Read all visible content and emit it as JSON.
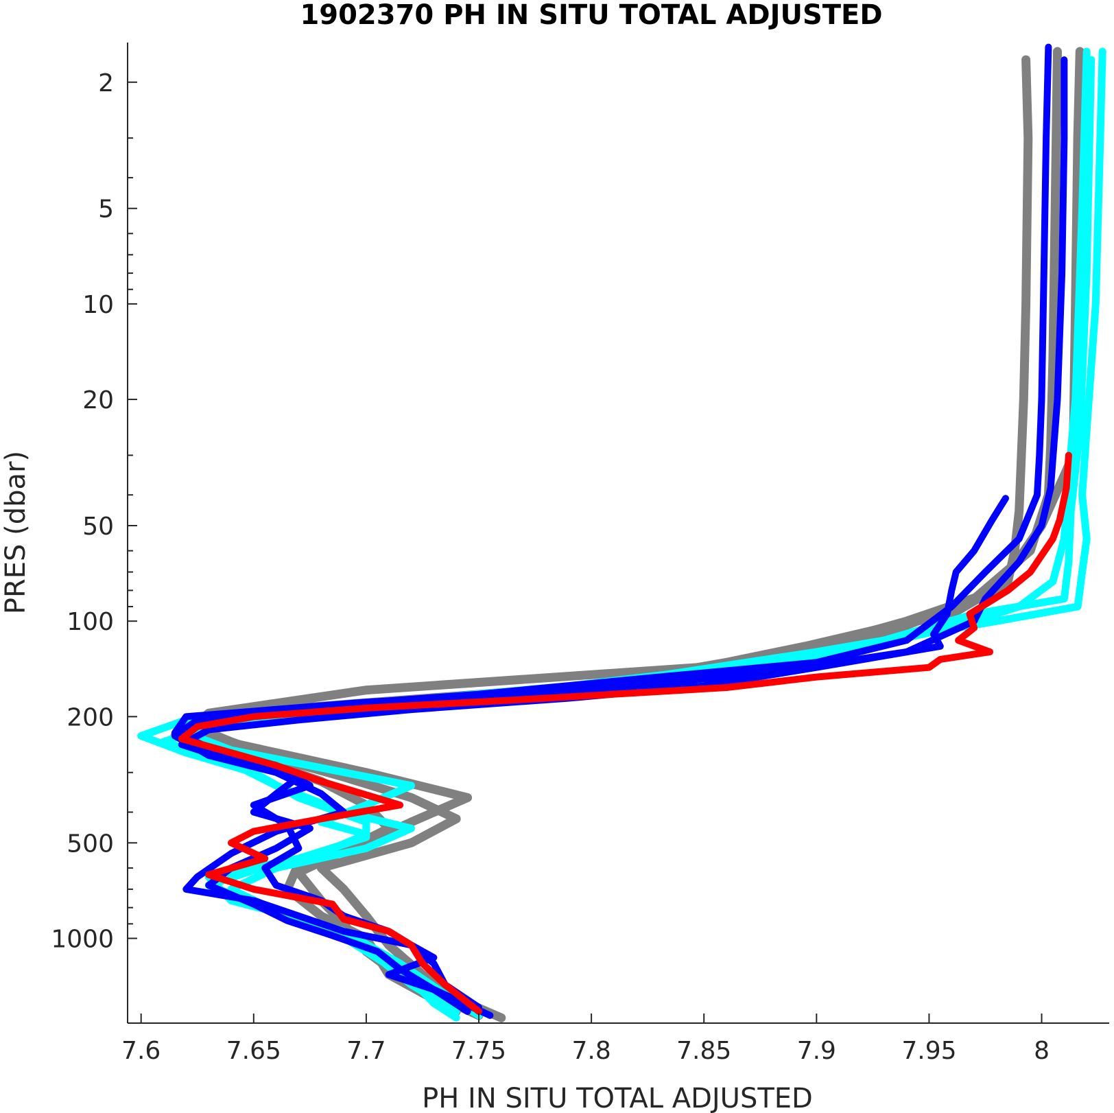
{
  "chart_data": {
    "type": "line",
    "title": "1902370  PH IN SITU TOTAL ADJUSTED",
    "xlabel": "PH IN SITU TOTAL ADJUSTED",
    "ylabel": "PRES (dbar)",
    "xlim": [
      7.594,
      8.03
    ],
    "ylim": [
      1.5,
      1850
    ],
    "y_scale": "log",
    "y_reversed": true,
    "grid": false,
    "x_ticks": [
      7.6,
      7.65,
      7.7,
      7.75,
      7.8,
      7.85,
      7.9,
      7.95,
      8.0
    ],
    "x_tick_labels": [
      "7.6",
      "7.65",
      "7.7",
      "7.75",
      "7.8",
      "7.85",
      "7.9",
      "7.95",
      "8"
    ],
    "y_ticks": [
      2,
      5,
      10,
      20,
      50,
      100,
      200,
      500,
      1000
    ],
    "y_tick_labels": [
      "2",
      "5",
      "10",
      "20",
      "50",
      "100",
      "200",
      "500",
      "1000"
    ],
    "y_minor_ticks": [
      3,
      4,
      6,
      7,
      8,
      9,
      30,
      40,
      60,
      70,
      80,
      90,
      300,
      400,
      600,
      700,
      800,
      900
    ],
    "colors": {
      "gray": "#808080",
      "cyan": "#00ffff",
      "blue": "#0000ff",
      "red": "#ff0000"
    },
    "series": [
      {
        "color": "gray",
        "points": [
          [
            7.993,
            1.7
          ],
          [
            7.994,
            3
          ],
          [
            7.993,
            10
          ],
          [
            7.992,
            20
          ],
          [
            7.991,
            30
          ],
          [
            7.99,
            45
          ],
          [
            7.988,
            60
          ],
          [
            7.985,
            75
          ],
          [
            7.96,
            95
          ],
          [
            7.93,
            105
          ],
          [
            7.895,
            120
          ],
          [
            7.86,
            135
          ],
          [
            7.8,
            160
          ],
          [
            7.66,
            190
          ],
          [
            7.62,
            210
          ],
          [
            7.64,
            240
          ],
          [
            7.66,
            270
          ],
          [
            7.69,
            310
          ],
          [
            7.72,
            360
          ],
          [
            7.74,
            420
          ],
          [
            7.72,
            500
          ],
          [
            7.68,
            600
          ],
          [
            7.69,
            700
          ],
          [
            7.7,
            850
          ],
          [
            7.71,
            1050
          ],
          [
            7.725,
            1300
          ],
          [
            7.745,
            1600
          ],
          [
            7.76,
            1780
          ]
        ]
      },
      {
        "color": "gray",
        "points": [
          [
            8.017,
            1.6
          ],
          [
            8.016,
            3
          ],
          [
            8.015,
            10
          ],
          [
            8.014,
            30
          ],
          [
            8.0,
            50
          ],
          [
            7.98,
            80
          ],
          [
            7.94,
            100
          ],
          [
            7.9,
            120
          ],
          [
            7.85,
            150
          ],
          [
            7.75,
            180
          ],
          [
            7.63,
            205
          ],
          [
            7.615,
            230
          ],
          [
            7.65,
            270
          ],
          [
            7.68,
            320
          ],
          [
            7.7,
            380
          ],
          [
            7.71,
            450
          ],
          [
            7.69,
            530
          ],
          [
            7.67,
            620
          ],
          [
            7.68,
            760
          ],
          [
            7.69,
            900
          ],
          [
            7.7,
            1100
          ],
          [
            7.72,
            1400
          ],
          [
            7.75,
            1750
          ]
        ]
      },
      {
        "color": "gray",
        "points": [
          [
            8.007,
            1.6
          ],
          [
            8.006,
            5
          ],
          [
            8.005,
            15
          ],
          [
            8.004,
            28
          ],
          [
            8.003,
            40
          ],
          [
            7.995,
            60
          ],
          [
            7.97,
            85
          ],
          [
            7.93,
            110
          ],
          [
            7.88,
            135
          ],
          [
            7.7,
            165
          ],
          [
            7.63,
            195
          ],
          [
            7.62,
            225
          ],
          [
            7.66,
            260
          ],
          [
            7.7,
            300
          ],
          [
            7.745,
            360
          ],
          [
            7.72,
            430
          ],
          [
            7.7,
            500
          ],
          [
            7.67,
            580
          ],
          [
            7.665,
            700
          ],
          [
            7.68,
            850
          ],
          [
            7.7,
            1000
          ],
          [
            7.71,
            1300
          ],
          [
            7.74,
            1700
          ]
        ]
      },
      {
        "color": "cyan",
        "points": [
          [
            8.027,
            1.6
          ],
          [
            8.026,
            3
          ],
          [
            8.024,
            10
          ],
          [
            8.02,
            25
          ],
          [
            8.018,
            40
          ],
          [
            8.02,
            55
          ],
          [
            8.018,
            70
          ],
          [
            8.016,
            90
          ],
          [
            7.98,
            100
          ],
          [
            7.9,
            125
          ],
          [
            7.8,
            160
          ],
          [
            7.7,
            185
          ],
          [
            7.62,
            205
          ],
          [
            7.6,
            230
          ],
          [
            7.62,
            260
          ],
          [
            7.65,
            300
          ],
          [
            7.67,
            360
          ],
          [
            7.7,
            430
          ],
          [
            7.7,
            480
          ],
          [
            7.67,
            560
          ],
          [
            7.63,
            640
          ],
          [
            7.64,
            760
          ],
          [
            7.68,
            900
          ],
          [
            7.7,
            1100
          ],
          [
            7.72,
            1350
          ],
          [
            7.73,
            1600
          ],
          [
            7.74,
            1780
          ]
        ]
      },
      {
        "color": "cyan",
        "points": [
          [
            8.02,
            1.6
          ],
          [
            8.018,
            5
          ],
          [
            8.015,
            20
          ],
          [
            8.012,
            35
          ],
          [
            8.01,
            55
          ],
          [
            8.005,
            75
          ],
          [
            7.99,
            90
          ],
          [
            7.96,
            105
          ],
          [
            7.9,
            130
          ],
          [
            7.84,
            155
          ],
          [
            7.74,
            175
          ],
          [
            7.69,
            185
          ],
          [
            7.63,
            215
          ],
          [
            7.61,
            240
          ],
          [
            7.64,
            280
          ],
          [
            7.66,
            330
          ],
          [
            7.69,
            400
          ],
          [
            7.72,
            450
          ],
          [
            7.7,
            520
          ],
          [
            7.66,
            600
          ],
          [
            7.64,
            700
          ],
          [
            7.66,
            820
          ],
          [
            7.69,
            950
          ],
          [
            7.715,
            1200
          ],
          [
            7.735,
            1500
          ],
          [
            7.75,
            1750
          ]
        ]
      },
      {
        "color": "cyan",
        "points": [
          [
            8.022,
            1.7
          ],
          [
            8.02,
            8
          ],
          [
            8.017,
            25
          ],
          [
            8.013,
            45
          ],
          [
            8.012,
            65
          ],
          [
            8.01,
            85
          ],
          [
            7.97,
            95
          ],
          [
            7.93,
            115
          ],
          [
            7.86,
            140
          ],
          [
            7.79,
            160
          ],
          [
            7.71,
            180
          ],
          [
            7.65,
            200
          ],
          [
            7.62,
            225
          ],
          [
            7.64,
            255
          ],
          [
            7.68,
            290
          ],
          [
            7.72,
            330
          ],
          [
            7.7,
            380
          ],
          [
            7.68,
            430
          ],
          [
            7.7,
            470
          ],
          [
            7.68,
            540
          ],
          [
            7.65,
            610
          ],
          [
            7.63,
            680
          ],
          [
            7.655,
            800
          ],
          [
            7.69,
            950
          ],
          [
            7.705,
            1150
          ],
          [
            7.72,
            1400
          ],
          [
            7.74,
            1700
          ]
        ]
      },
      {
        "color": "blue",
        "points": [
          [
            8.003,
            1.55
          ],
          [
            8.002,
            3
          ],
          [
            8.001,
            8
          ],
          [
            8.0,
            20
          ],
          [
            7.999,
            30
          ],
          [
            7.998,
            40
          ],
          [
            7.99,
            55
          ],
          [
            7.975,
            70
          ],
          [
            7.96,
            90
          ],
          [
            7.94,
            115
          ],
          [
            7.9,
            135
          ],
          [
            7.83,
            150
          ],
          [
            7.75,
            170
          ],
          [
            7.68,
            185
          ],
          [
            7.625,
            205
          ],
          [
            7.615,
            230
          ],
          [
            7.63,
            265
          ],
          [
            7.66,
            300
          ],
          [
            7.68,
            350
          ],
          [
            7.69,
            400
          ],
          [
            7.66,
            460
          ],
          [
            7.64,
            540
          ],
          [
            7.625,
            640
          ],
          [
            7.62,
            700
          ],
          [
            7.65,
            760
          ],
          [
            7.67,
            850
          ],
          [
            7.69,
            950
          ],
          [
            7.72,
            1050
          ],
          [
            7.73,
            1150
          ],
          [
            7.71,
            1300
          ],
          [
            7.73,
            1450
          ],
          [
            7.755,
            1750
          ]
        ]
      },
      {
        "color": "blue",
        "points": [
          [
            8.01,
            1.7
          ],
          [
            8.01,
            3
          ],
          [
            8.009,
            8
          ],
          [
            8.007,
            20
          ],
          [
            8.004,
            38
          ],
          [
            8.0,
            50
          ],
          [
            7.99,
            65
          ],
          [
            7.975,
            85
          ],
          [
            7.97,
            100
          ],
          [
            7.94,
            125
          ],
          [
            7.88,
            145
          ],
          [
            7.8,
            165
          ],
          [
            7.7,
            180
          ],
          [
            7.62,
            200
          ],
          [
            7.615,
            225
          ],
          [
            7.63,
            250
          ],
          [
            7.66,
            285
          ],
          [
            7.675,
            330
          ],
          [
            7.65,
            380
          ],
          [
            7.665,
            440
          ],
          [
            7.67,
            520
          ],
          [
            7.655,
            600
          ],
          [
            7.66,
            680
          ],
          [
            7.68,
            760
          ],
          [
            7.69,
            850
          ],
          [
            7.71,
            950
          ],
          [
            7.72,
            1050
          ],
          [
            7.73,
            1200
          ],
          [
            7.735,
            1400
          ],
          [
            7.75,
            1650
          ]
        ]
      },
      {
        "color": "blue",
        "points": [
          [
            7.984,
            41
          ],
          [
            7.978,
            48
          ],
          [
            7.97,
            60
          ],
          [
            7.962,
            70
          ],
          [
            7.96,
            80
          ],
          [
            7.958,
            95
          ],
          [
            7.952,
            110
          ],
          [
            7.955,
            120
          ],
          [
            7.9,
            140
          ],
          [
            7.85,
            160
          ],
          [
            7.79,
            175
          ],
          [
            7.72,
            190
          ],
          [
            7.67,
            205
          ],
          [
            7.63,
            220
          ],
          [
            7.618,
            245
          ],
          [
            7.64,
            275
          ],
          [
            7.67,
            310
          ],
          [
            7.66,
            350
          ],
          [
            7.65,
            400
          ],
          [
            7.675,
            450
          ],
          [
            7.66,
            520
          ],
          [
            7.64,
            600
          ],
          [
            7.63,
            680
          ],
          [
            7.65,
            780
          ],
          [
            7.665,
            880
          ],
          [
            7.685,
            980
          ],
          [
            7.705,
            1100
          ],
          [
            7.715,
            1250
          ],
          [
            7.73,
            1450
          ],
          [
            7.745,
            1700
          ]
        ]
      },
      {
        "color": "red",
        "points": [
          [
            8.012,
            30
          ],
          [
            8.011,
            38
          ],
          [
            8.008,
            48
          ],
          [
            8.005,
            55
          ],
          [
            7.995,
            70
          ],
          [
            7.985,
            80
          ],
          [
            7.968,
            95
          ],
          [
            7.97,
            105
          ],
          [
            7.963,
            115
          ],
          [
            7.977,
            125
          ],
          [
            7.955,
            132
          ],
          [
            7.95,
            140
          ],
          [
            7.9,
            150
          ],
          [
            7.86,
            162
          ],
          [
            7.78,
            175
          ],
          [
            7.7,
            188
          ],
          [
            7.65,
            200
          ],
          [
            7.625,
            215
          ],
          [
            7.618,
            235
          ],
          [
            7.64,
            260
          ],
          [
            7.66,
            285
          ],
          [
            7.68,
            320
          ],
          [
            7.715,
            380
          ],
          [
            7.68,
            420
          ],
          [
            7.65,
            460
          ],
          [
            7.64,
            500
          ],
          [
            7.655,
            560
          ],
          [
            7.63,
            630
          ],
          [
            7.65,
            700
          ],
          [
            7.685,
            780
          ],
          [
            7.69,
            870
          ],
          [
            7.71,
            950
          ],
          [
            7.72,
            1050
          ],
          [
            7.725,
            1200
          ],
          [
            7.735,
            1400
          ],
          [
            7.75,
            1700
          ]
        ]
      }
    ]
  }
}
